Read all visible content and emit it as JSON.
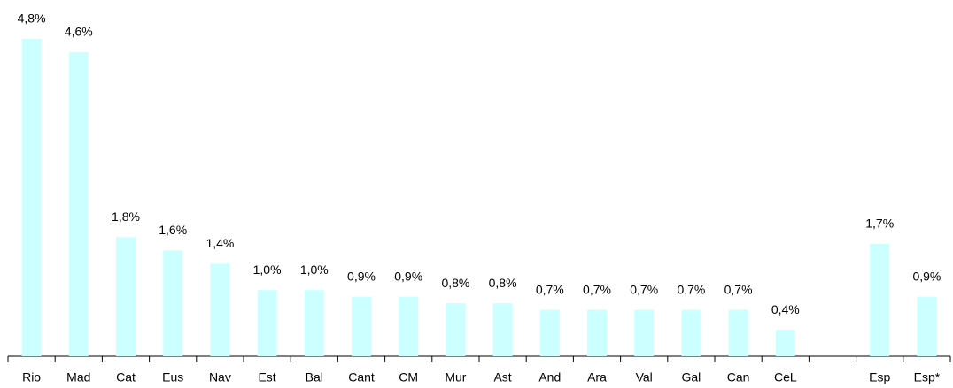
{
  "chart_data": {
    "type": "bar",
    "categories": [
      "Rio",
      "Mad",
      "Cat",
      "Eus",
      "Nav",
      "Est",
      "Bal",
      "Cant",
      "CM",
      "Mur",
      "Ast",
      "And",
      "Ara",
      "Val",
      "Gal",
      "Can",
      "CeL",
      null,
      "Esp",
      "Esp*"
    ],
    "values": [
      4.8,
      4.6,
      1.8,
      1.6,
      1.4,
      1.0,
      1.0,
      0.9,
      0.9,
      0.8,
      0.8,
      0.7,
      0.7,
      0.7,
      0.7,
      0.7,
      0.4,
      null,
      1.7,
      0.9
    ],
    "value_labels": [
      "4,8%",
      "4,6%",
      "1,8%",
      "1,6%",
      "1,4%",
      "1,0%",
      "1,0%",
      "0,9%",
      "0,9%",
      "0,8%",
      "0,8%",
      "0,7%",
      "0,7%",
      "0,7%",
      "0,7%",
      "0,7%",
      "0,4%",
      null,
      "1,7%",
      "0,9%"
    ],
    "color": "#ccffff"
  }
}
